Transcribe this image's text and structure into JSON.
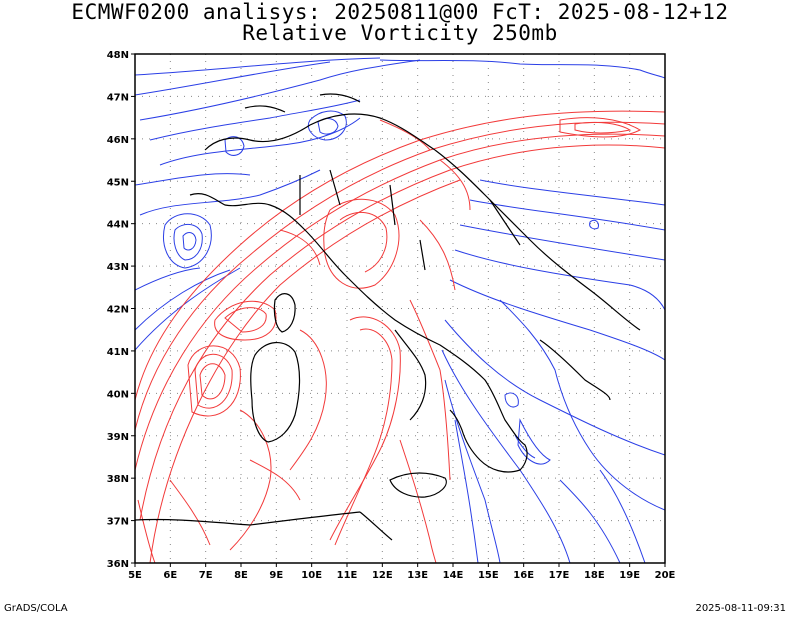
{
  "title": "ECMWF0200 analisys: 20250811@00 FcT: 2025-08-12+12",
  "subtitle": "Relative Vorticity 250mb",
  "footer_left": "GrADS/COLA",
  "footer_right": "2025-08-11-09:31",
  "map": {
    "type": "contour map",
    "field": "relative vorticity",
    "level": "250mb",
    "region": "Italy / central Mediterranean",
    "lon_range": [
      5,
      20
    ],
    "lat_range": [
      36,
      48
    ],
    "lon_ticks": [
      "5E",
      "6E",
      "7E",
      "8E",
      "9E",
      "10E",
      "11E",
      "12E",
      "13E",
      "14E",
      "15E",
      "16E",
      "17E",
      "18E",
      "19E",
      "20E"
    ],
    "lat_ticks": [
      "36N",
      "37N",
      "38N",
      "39N",
      "40N",
      "41N",
      "42N",
      "43N",
      "44N",
      "45N",
      "46N",
      "47N",
      "48N"
    ],
    "grid": "dotted",
    "colors": {
      "positive": "#f23a3a",
      "negative": "#2b3fe6",
      "coast": "#000000"
    }
  }
}
